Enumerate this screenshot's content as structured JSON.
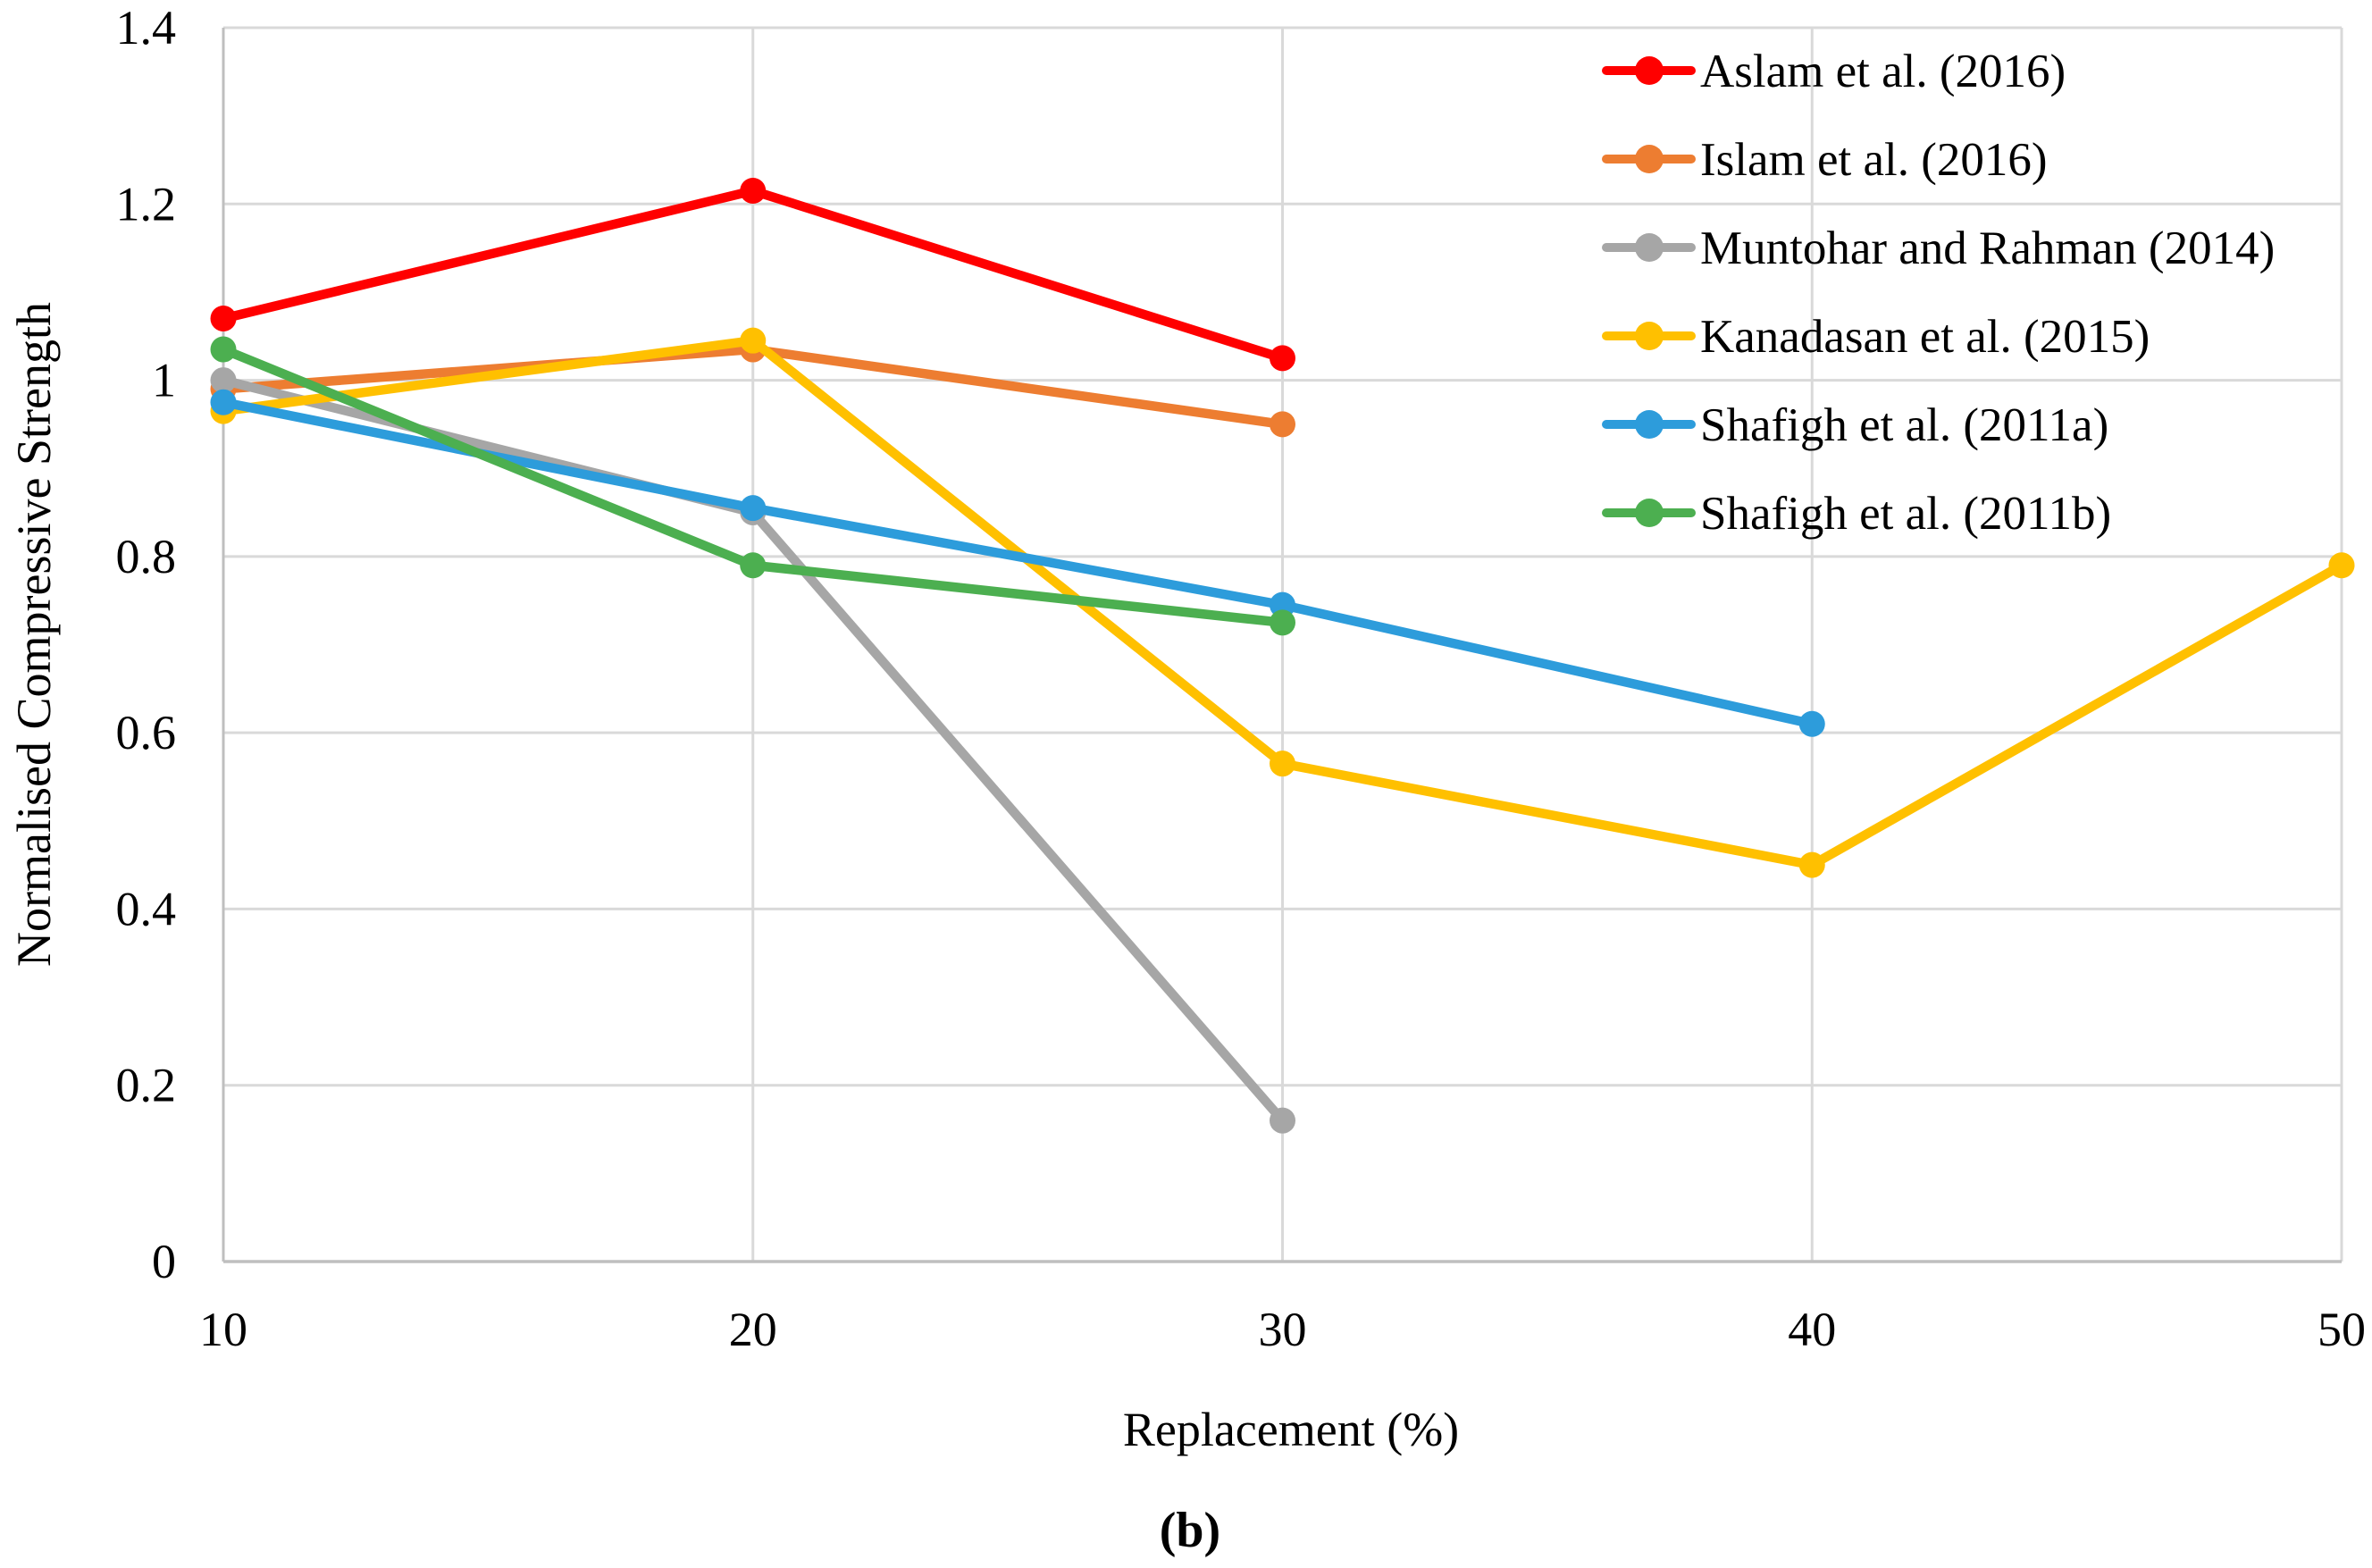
{
  "figure": {
    "caption": "(b)",
    "background_color": "#ffffff"
  },
  "style": {
    "gridline_color": "#D9D9D9",
    "axis_color": "#BFBFBF",
    "text_color": "#000000"
  },
  "chart_data": {
    "type": "line",
    "title": "",
    "xlabel": "Replacement (%)",
    "ylabel": "Normalised Compressive Strength",
    "xlim": [
      10,
      50
    ],
    "ylim": [
      0,
      1.4
    ],
    "grid": true,
    "legend_position": "top-right-inside",
    "x_ticks": [
      {
        "v": 10,
        "label": "10"
      },
      {
        "v": 20,
        "label": "20"
      },
      {
        "v": 30,
        "label": "30"
      },
      {
        "v": 40,
        "label": "40"
      },
      {
        "v": 50,
        "label": "50"
      }
    ],
    "y_ticks": [
      {
        "v": 0,
        "label": "0"
      },
      {
        "v": 0.2,
        "label": "0.2"
      },
      {
        "v": 0.4,
        "label": "0.4"
      },
      {
        "v": 0.6,
        "label": "0.6"
      },
      {
        "v": 0.8,
        "label": "0.8"
      },
      {
        "v": 1,
        "label": "1"
      },
      {
        "v": 1.2,
        "label": "1.2"
      },
      {
        "v": 1.4,
        "label": "1.4"
      }
    ],
    "series": [
      {
        "name": "Aslam et al. (2016)",
        "color": "#FF0000",
        "x": [
          10,
          20,
          30
        ],
        "y": [
          1.07,
          1.215,
          1.025
        ]
      },
      {
        "name": "Islam et al. (2016)",
        "color": "#ED7D31",
        "x": [
          10,
          20,
          30
        ],
        "y": [
          0.99,
          1.035,
          0.95
        ]
      },
      {
        "name": "Muntohar and Rahman (2014)",
        "color": "#A6A6A6",
        "x": [
          10,
          20,
          30
        ],
        "y": [
          1.0,
          0.85,
          0.16
        ]
      },
      {
        "name": "Kanadasan et al. (2015)",
        "color": "#FFC000",
        "x": [
          10,
          20,
          30,
          40,
          50
        ],
        "y": [
          0.965,
          1.045,
          0.565,
          0.45,
          0.79
        ]
      },
      {
        "name": "Shafigh et al. (2011a)",
        "color": "#2D9CDB",
        "x": [
          10,
          20,
          30,
          40
        ],
        "y": [
          0.975,
          0.855,
          0.745,
          0.61
        ]
      },
      {
        "name": "Shafigh et al. (2011b)",
        "color": "#4CAF50",
        "x": [
          10,
          20,
          30
        ],
        "y": [
          1.035,
          0.79,
          0.725
        ]
      }
    ]
  }
}
